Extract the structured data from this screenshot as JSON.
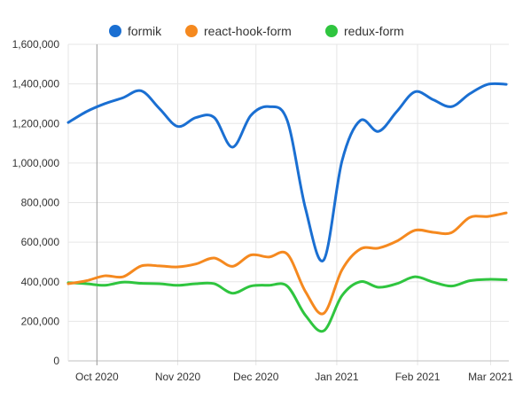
{
  "chart_data": {
    "type": "line",
    "title": "",
    "xlabel": "",
    "ylabel": "",
    "ylim": [
      0,
      1600000
    ],
    "y_ticks": [
      0,
      200000,
      400000,
      600000,
      800000,
      1000000,
      1200000,
      1400000,
      1600000
    ],
    "y_tick_labels": [
      "0",
      "200,000",
      "400,000",
      "600,000",
      "800,000",
      "1,000,000",
      "1,200,000",
      "1,400,000",
      "1,600,000"
    ],
    "x_ticks": [
      "2020-10-01",
      "2020-11-01",
      "2020-12-01",
      "2021-01-01",
      "2021-02-01",
      "2021-03-01"
    ],
    "x_tick_labels": [
      "Oct 2020",
      "Nov 2020",
      "Dec 2020",
      "Jan 2021",
      "Feb 2021",
      "Mar 2021"
    ],
    "xlim": [
      "2020-09-20",
      "2021-03-08"
    ],
    "marker_line_date": "2020-10-01",
    "grid": true,
    "legend_position": "top-center",
    "x": [
      "2020-09-20",
      "2020-09-27",
      "2020-10-04",
      "2020-10-11",
      "2020-10-18",
      "2020-10-25",
      "2020-11-01",
      "2020-11-08",
      "2020-11-15",
      "2020-11-22",
      "2020-11-29",
      "2020-12-06",
      "2020-12-13",
      "2020-12-20",
      "2020-12-27",
      "2021-01-03",
      "2021-01-10",
      "2021-01-17",
      "2021-01-24",
      "2021-01-31",
      "2021-02-07",
      "2021-02-14",
      "2021-02-21",
      "2021-02-28",
      "2021-03-07"
    ],
    "series": [
      {
        "name": "formik",
        "color": "#1a6fd2",
        "values": [
          1205000,
          1260000,
          1300000,
          1330000,
          1365000,
          1275000,
          1185000,
          1230000,
          1230000,
          1080000,
          1240000,
          1285000,
          1215000,
          770000,
          510000,
          1010000,
          1215000,
          1160000,
          1260000,
          1360000,
          1320000,
          1285000,
          1350000,
          1398000,
          1398000
        ]
      },
      {
        "name": "react-hook-form",
        "color": "#f5891f",
        "values": [
          390000,
          405000,
          430000,
          425000,
          480000,
          480000,
          475000,
          490000,
          520000,
          478000,
          535000,
          525000,
          540000,
          350000,
          240000,
          460000,
          565000,
          570000,
          605000,
          660000,
          650000,
          648000,
          725000,
          730000,
          748000
        ]
      },
      {
        "name": "redux-form",
        "color": "#2fc53f",
        "values": [
          395000,
          390000,
          382000,
          398000,
          392000,
          390000,
          382000,
          390000,
          390000,
          342000,
          378000,
          382000,
          378000,
          230000,
          152000,
          330000,
          400000,
          372000,
          390000,
          425000,
          398000,
          378000,
          405000,
          412000,
          410000
        ]
      }
    ]
  }
}
